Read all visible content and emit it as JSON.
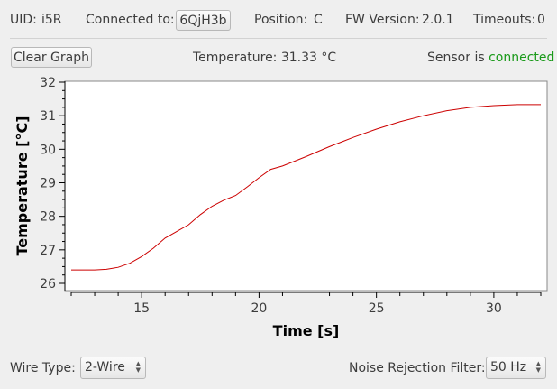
{
  "status_bar": {
    "uid_label": "UID:",
    "uid_value": "i5R",
    "connected_label": "Connected to:",
    "connected_value": "6QjH3b",
    "position_label": "Position:",
    "position_value": "C",
    "fw_label": "FW Version:",
    "fw_value": "2.0.1",
    "timeouts_label": "Timeouts:",
    "timeouts_value": "0"
  },
  "toolbar": {
    "clear_graph_label": "Clear Graph",
    "temperature_text": "Temperature: 31.33 °C",
    "sensor_prefix": "Sensor is",
    "sensor_state": "connected",
    "sensor_state_color": "#1a9a1a"
  },
  "settings": {
    "wire_type_label": "Wire Type:",
    "wire_type_value": "2-Wire",
    "noise_filter_label": "Noise Rejection Filter:",
    "noise_filter_value": "50 Hz"
  },
  "chart_data": {
    "type": "line",
    "xlabel": "Time [s]",
    "ylabel": "Temperature [°C]",
    "xlim": [
      12,
      32
    ],
    "ylim": [
      26,
      32
    ],
    "xticks": [
      15,
      20,
      25,
      30
    ],
    "yticks": [
      26,
      27,
      28,
      29,
      30,
      31,
      32
    ],
    "grid": false,
    "series": [
      {
        "color": "#cc0000",
        "x": [
          12.0,
          13.0,
          13.5,
          14.0,
          14.5,
          15.0,
          15.5,
          16.0,
          16.5,
          17.0,
          17.5,
          18.0,
          18.5,
          19.0,
          19.5,
          20.0,
          20.5,
          21.0,
          22.0,
          23.0,
          24.0,
          25.0,
          26.0,
          27.0,
          28.0,
          29.0,
          30.0,
          31.0,
          32.0
        ],
        "y": [
          26.4,
          26.4,
          26.42,
          26.48,
          26.6,
          26.8,
          27.05,
          27.35,
          27.55,
          27.75,
          28.05,
          28.3,
          28.48,
          28.62,
          28.88,
          29.15,
          29.4,
          29.5,
          29.78,
          30.08,
          30.35,
          30.6,
          30.82,
          31.0,
          31.15,
          31.25,
          31.3,
          31.33,
          31.33
        ]
      }
    ]
  }
}
